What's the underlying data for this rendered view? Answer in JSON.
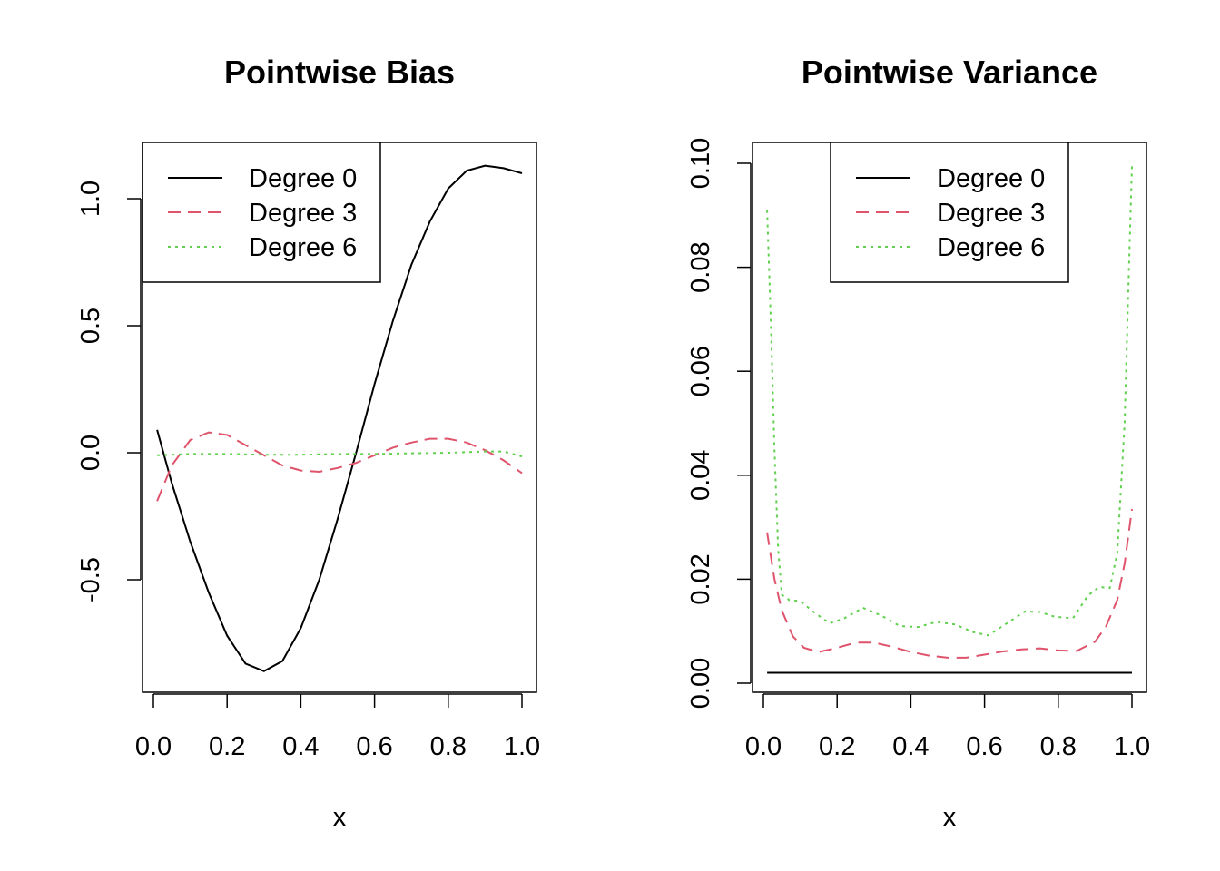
{
  "chart_data": [
    {
      "type": "line",
      "title": "Pointwise Bias",
      "xlabel": "x",
      "ylabel": "",
      "xlim": [
        0.0,
        1.0
      ],
      "ylim": [
        -0.9,
        1.15
      ],
      "xticks": [
        "0.0",
        "0.2",
        "0.4",
        "0.6",
        "0.8",
        "1.0"
      ],
      "yticks": [
        "-0.5",
        "0.0",
        "0.5",
        "1.0"
      ],
      "legend": {
        "position": "top-left",
        "entries": [
          "Degree 0",
          "Degree 3",
          "Degree 6"
        ]
      },
      "series": [
        {
          "name": "Degree 0",
          "color": "#000000",
          "dash": "solid",
          "x": [
            0.01,
            0.05,
            0.1,
            0.15,
            0.2,
            0.25,
            0.3,
            0.35,
            0.4,
            0.45,
            0.5,
            0.55,
            0.6,
            0.65,
            0.7,
            0.75,
            0.8,
            0.85,
            0.9,
            0.95,
            1.0
          ],
          "y": [
            0.09,
            -0.12,
            -0.35,
            -0.55,
            -0.72,
            -0.83,
            -0.86,
            -0.82,
            -0.69,
            -0.5,
            -0.26,
            0.0,
            0.27,
            0.52,
            0.74,
            0.91,
            1.04,
            1.11,
            1.13,
            1.12,
            1.1
          ]
        },
        {
          "name": "Degree 3",
          "color": "#df536b",
          "dash": "dashed",
          "x": [
            0.01,
            0.05,
            0.1,
            0.15,
            0.2,
            0.25,
            0.3,
            0.35,
            0.4,
            0.45,
            0.5,
            0.55,
            0.6,
            0.65,
            0.7,
            0.75,
            0.8,
            0.85,
            0.9,
            0.95,
            1.0
          ],
          "y": [
            -0.19,
            -0.05,
            0.05,
            0.08,
            0.07,
            0.03,
            -0.01,
            -0.05,
            -0.07,
            -0.075,
            -0.06,
            -0.04,
            -0.01,
            0.02,
            0.04,
            0.055,
            0.055,
            0.04,
            0.01,
            -0.03,
            -0.08
          ]
        },
        {
          "name": "Degree 6",
          "color": "#61d04f",
          "dash": "dotted",
          "x": [
            0.01,
            0.1,
            0.2,
            0.3,
            0.4,
            0.5,
            0.6,
            0.7,
            0.8,
            0.9,
            0.95,
            1.0
          ],
          "y": [
            -0.01,
            -0.005,
            -0.005,
            -0.008,
            -0.008,
            -0.005,
            -0.005,
            -0.002,
            0.0,
            0.005,
            0.005,
            -0.015
          ]
        }
      ]
    },
    {
      "type": "line",
      "title": "Pointwise Variance",
      "xlabel": "x",
      "ylabel": "",
      "xlim": [
        0.0,
        1.0
      ],
      "ylim": [
        0.0,
        0.1
      ],
      "xticks": [
        "0.0",
        "0.2",
        "0.4",
        "0.6",
        "0.8",
        "1.0"
      ],
      "yticks": [
        "0.00",
        "0.02",
        "0.04",
        "0.06",
        "0.08",
        "0.10"
      ],
      "legend": {
        "position": "top-center",
        "entries": [
          "Degree 0",
          "Degree 3",
          "Degree 6"
        ]
      },
      "series": [
        {
          "name": "Degree 0",
          "color": "#000000",
          "dash": "solid",
          "x": [
            0.01,
            1.0
          ],
          "y": [
            0.002,
            0.002
          ]
        },
        {
          "name": "Degree 3",
          "color": "#df536b",
          "dash": "dashed",
          "x": [
            0.01,
            0.03,
            0.05,
            0.08,
            0.11,
            0.15,
            0.2,
            0.25,
            0.3,
            0.35,
            0.4,
            0.45,
            0.5,
            0.55,
            0.6,
            0.65,
            0.7,
            0.75,
            0.8,
            0.85,
            0.9,
            0.93,
            0.96,
            0.98,
            1.0
          ],
          "y": [
            0.029,
            0.02,
            0.014,
            0.009,
            0.0068,
            0.006,
            0.0068,
            0.0078,
            0.0078,
            0.007,
            0.006,
            0.0053,
            0.0049,
            0.0049,
            0.0055,
            0.0061,
            0.0065,
            0.0067,
            0.0063,
            0.0062,
            0.008,
            0.011,
            0.016,
            0.023,
            0.0335
          ]
        },
        {
          "name": "Degree 6",
          "color": "#61d04f",
          "dash": "dotted",
          "x": [
            0.01,
            0.02,
            0.03,
            0.04,
            0.05,
            0.07,
            0.1,
            0.14,
            0.18,
            0.22,
            0.27,
            0.32,
            0.37,
            0.42,
            0.47,
            0.52,
            0.57,
            0.61,
            0.66,
            0.71,
            0.75,
            0.79,
            0.84,
            0.88,
            0.91,
            0.94,
            0.96,
            0.98,
            0.99,
            1.0
          ],
          "y": [
            0.091,
            0.07,
            0.045,
            0.026,
            0.017,
            0.016,
            0.0158,
            0.0135,
            0.0115,
            0.0125,
            0.0145,
            0.013,
            0.011,
            0.0108,
            0.0118,
            0.0113,
            0.0098,
            0.0092,
            0.0115,
            0.0138,
            0.0137,
            0.0128,
            0.0125,
            0.0168,
            0.0185,
            0.0183,
            0.025,
            0.05,
            0.075,
            0.0995
          ]
        }
      ]
    }
  ]
}
